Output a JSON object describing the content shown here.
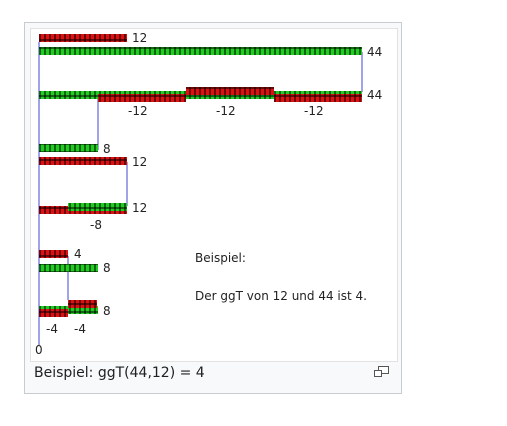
{
  "figure": {
    "caption": "Beispiel: ggT(44,12) = 4",
    "note_title": "Beispiel:",
    "note_text": "Der ggT von 12 und 44 ist 4."
  },
  "labels": {
    "r1_red": "12",
    "r2_green": "44",
    "r3_total": "44",
    "r3_sub1": "-12",
    "r3_sub2": "-12",
    "r3_sub3": "-12",
    "r4_green": "8",
    "r5_red": "12",
    "r6_total": "12",
    "r6_sub": "-8",
    "r7_red": "4",
    "r8_green": "8",
    "r9_total": "8",
    "r9_sub1": "-4",
    "r9_sub2": "-4",
    "zero": "0"
  },
  "colors": {
    "red": "#dd1111",
    "green": "#22cc22",
    "line": "#4444cc"
  },
  "icons": {
    "magnify": "magnify-clip-icon"
  }
}
